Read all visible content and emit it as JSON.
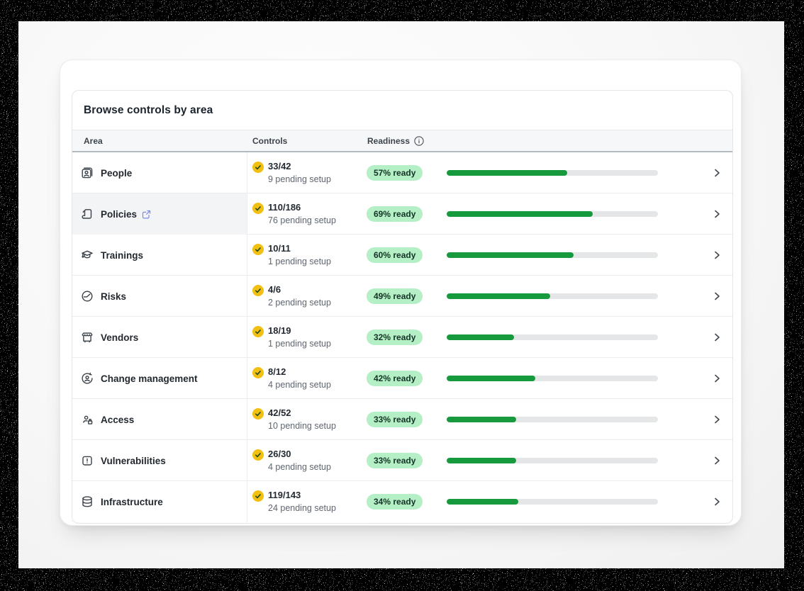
{
  "panel": {
    "title": "Browse controls by area",
    "columns": {
      "area": "Area",
      "controls": "Controls",
      "readiness": "Readiness"
    },
    "readiness_info_icon": "info-icon"
  },
  "rows": [
    {
      "area": "People",
      "icon": "icon-people",
      "done": "33/42",
      "pending": "9 pending setup",
      "ready_label": "57% ready",
      "percent": 57,
      "external_link": false,
      "highlighted": false
    },
    {
      "area": "Policies",
      "icon": "icon-policies",
      "done": "110/186",
      "pending": "76 pending setup",
      "ready_label": "69% ready",
      "percent": 69,
      "external_link": true,
      "highlighted": true
    },
    {
      "area": "Trainings",
      "icon": "icon-trainings",
      "done": "10/11",
      "pending": "1 pending setup",
      "ready_label": "60% ready",
      "percent": 60,
      "external_link": false,
      "highlighted": false
    },
    {
      "area": "Risks",
      "icon": "icon-risks",
      "done": "4/6",
      "pending": "2 pending setup",
      "ready_label": "49% ready",
      "percent": 49,
      "external_link": false,
      "highlighted": false
    },
    {
      "area": "Vendors",
      "icon": "icon-vendors",
      "done": "18/19",
      "pending": "1 pending setup",
      "ready_label": "32% ready",
      "percent": 32,
      "external_link": false,
      "highlighted": false
    },
    {
      "area": "Change management",
      "icon": "icon-change",
      "done": "8/12",
      "pending": "4 pending setup",
      "ready_label": "42% ready",
      "percent": 42,
      "external_link": false,
      "highlighted": false
    },
    {
      "area": "Access",
      "icon": "icon-access",
      "done": "42/52",
      "pending": "10 pending setup",
      "ready_label": "33% ready",
      "percent": 33,
      "external_link": false,
      "highlighted": false
    },
    {
      "area": "Vulnerabilities",
      "icon": "icon-vulnerabilities",
      "done": "26/30",
      "pending": "4 pending setup",
      "ready_label": "33% ready",
      "percent": 33,
      "external_link": false,
      "highlighted": false
    },
    {
      "area": "Infrastructure",
      "icon": "icon-infrastructure",
      "done": "119/143",
      "pending": "24 pending setup",
      "ready_label": "34% ready",
      "percent": 34,
      "external_link": false,
      "highlighted": false
    }
  ],
  "colors": {
    "progress_fill": "#17993d",
    "progress_track": "#e4e6e8",
    "pill_bg": "#b5efc5",
    "pill_text": "#123326",
    "badge_bg": "#f2c013",
    "badge_check": "#2b4d22",
    "external_link": "#7d8be9"
  }
}
